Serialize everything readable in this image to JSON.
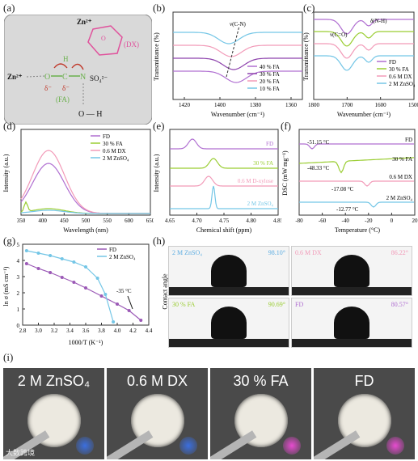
{
  "labels": {
    "a": "(a)",
    "b": "(b)",
    "c": "(c)",
    "d": "(d)",
    "e": "(e)",
    "f": "(f)",
    "g": "(g)",
    "h": "(h)",
    "i": "(i)"
  },
  "panel_a": {
    "zn3": "Zn²⁺",
    "zn2": "Zn²⁺",
    "dx": "(DX)",
    "fa": "(FA)",
    "so4": "SO₄²⁻",
    "delta1": "δ⁻",
    "delta2": "δ⁻",
    "o": "O",
    "c": "C",
    "n": "N",
    "h": "H",
    "oh": "O — H",
    "ring_o": "O"
  },
  "panel_b": {
    "chart_data": {
      "type": "line",
      "xlabel": "Wavenumber (cm⁻¹)",
      "ylabel": "Transmittance (%)",
      "xticks": [
        "1420",
        "1400",
        "1380",
        "1360"
      ],
      "series": [
        {
          "name": "40 % FA",
          "color": "#b06fd1"
        },
        {
          "name": "30 % FA",
          "color": "#8e44ad"
        },
        {
          "name": "20 % FA",
          "color": "#f29ab8"
        },
        {
          "name": "10 % FA",
          "color": "#74c6e6"
        }
      ],
      "annotation": "ν(C-N)"
    }
  },
  "panel_c": {
    "chart_data": {
      "type": "line",
      "xlabel": "Wavenumber (cm⁻¹)",
      "ylabel": "Transmittance (%)",
      "xticks": [
        "1800",
        "1700",
        "1600",
        "1500"
      ],
      "series": [
        {
          "name": "FD",
          "color": "#b06fd1"
        },
        {
          "name": "30 % FA",
          "color": "#9acd32"
        },
        {
          "name": "0.6 M DX",
          "color": "#f29ab8"
        },
        {
          "name": "2 M ZnSO₄",
          "color": "#74c6e6"
        }
      ],
      "annotations": [
        "ν(C=O)",
        "δ(N-H)"
      ]
    }
  },
  "panel_d": {
    "chart_data": {
      "type": "line",
      "xlabel": "Wavelength (nm)",
      "ylabel": "Intensity (a.u.)",
      "xticks": [
        "350",
        "400",
        "450",
        "500",
        "550",
        "600",
        "650"
      ],
      "series": [
        {
          "name": "FD",
          "color": "#b06fd1"
        },
        {
          "name": "30 % FA",
          "color": "#9acd32"
        },
        {
          "name": "0.6 M DX",
          "color": "#f29ab8"
        },
        {
          "name": "2 M ZnSO₄",
          "color": "#74c6e6"
        }
      ]
    }
  },
  "panel_e": {
    "chart_data": {
      "type": "line",
      "xlabel": "Chemical shift (ppm)",
      "ylabel": "Intensity (a.u.)",
      "xticks": [
        "4.65",
        "4.70",
        "4.75",
        "4.80",
        "4.85"
      ],
      "series": [
        {
          "name": "FD",
          "color": "#b06fd1"
        },
        {
          "name": "30 % FA",
          "color": "#9acd32"
        },
        {
          "name": "0.6 M D-xylose",
          "color": "#f29ab8"
        },
        {
          "name": "2 M ZnSO₄",
          "color": "#74c6e6"
        }
      ]
    }
  },
  "panel_f": {
    "chart_data": {
      "type": "line",
      "xlabel": "Temperature (°C)",
      "ylabel": "DSC (mW mg⁻¹)",
      "xticks": [
        "-80",
        "-60",
        "-40",
        "-20",
        "0",
        "20"
      ],
      "series": [
        {
          "name": "FD",
          "color": "#b06fd1"
        },
        {
          "name": "30 % FA",
          "color": "#9acd32"
        },
        {
          "name": "0.6 M DX",
          "color": "#f29ab8"
        },
        {
          "name": "2 M ZnSO₄",
          "color": "#74c6e6"
        }
      ],
      "annotations": [
        "-51.15 °C",
        "-48.33 °C",
        "-17.08 °C",
        "-12.77 °C"
      ]
    }
  },
  "panel_g": {
    "chart_data": {
      "type": "line",
      "xlabel": "1000/T (K⁻¹)",
      "ylabel": "ln σ (mS cm⁻¹)",
      "xticks": [
        "2.8",
        "3.0",
        "3.2",
        "3.4",
        "3.6",
        "3.8",
        "4.0",
        "4.2",
        "4.4"
      ],
      "yticks": [
        "0",
        "1",
        "2",
        "3",
        "4",
        "5"
      ],
      "series": [
        {
          "name": "FD",
          "color": "#9b59b6",
          "x": [
            2.85,
            3.0,
            3.15,
            3.3,
            3.45,
            3.6,
            3.8,
            4.0,
            4.15,
            4.3
          ],
          "y": [
            3.8,
            3.5,
            3.25,
            2.95,
            2.65,
            2.3,
            1.8,
            1.3,
            0.9,
            0.3
          ]
        },
        {
          "name": "2 M ZnSO₄",
          "color": "#74c6e6",
          "x": [
            2.85,
            3.0,
            3.15,
            3.3,
            3.45,
            3.6,
            3.75,
            3.85,
            3.95
          ],
          "y": [
            4.6,
            4.45,
            4.3,
            4.1,
            3.9,
            3.6,
            2.9,
            1.9,
            0.2
          ]
        }
      ],
      "annotation": "-35 °C"
    }
  },
  "panel_h": {
    "side_label": "Contact angle",
    "items": [
      {
        "name": "2 M ZnSO₄",
        "angle": "98.10°",
        "color": "#5dade2"
      },
      {
        "name": "0.6 M DX",
        "angle": "86.22°",
        "color": "#f29ab8"
      },
      {
        "name": "30 % FA",
        "angle": "90.69°",
        "color": "#9acd32"
      },
      {
        "name": "FD",
        "angle": "80.57°",
        "color": "#b06fd1"
      }
    ]
  },
  "panel_i": {
    "photos": [
      {
        "title": "2 M ZnSO₄"
      },
      {
        "title": "0.6 M DX"
      },
      {
        "title": "30 % FA"
      },
      {
        "title": "FD"
      }
    ],
    "watermark": "大数跨境"
  }
}
